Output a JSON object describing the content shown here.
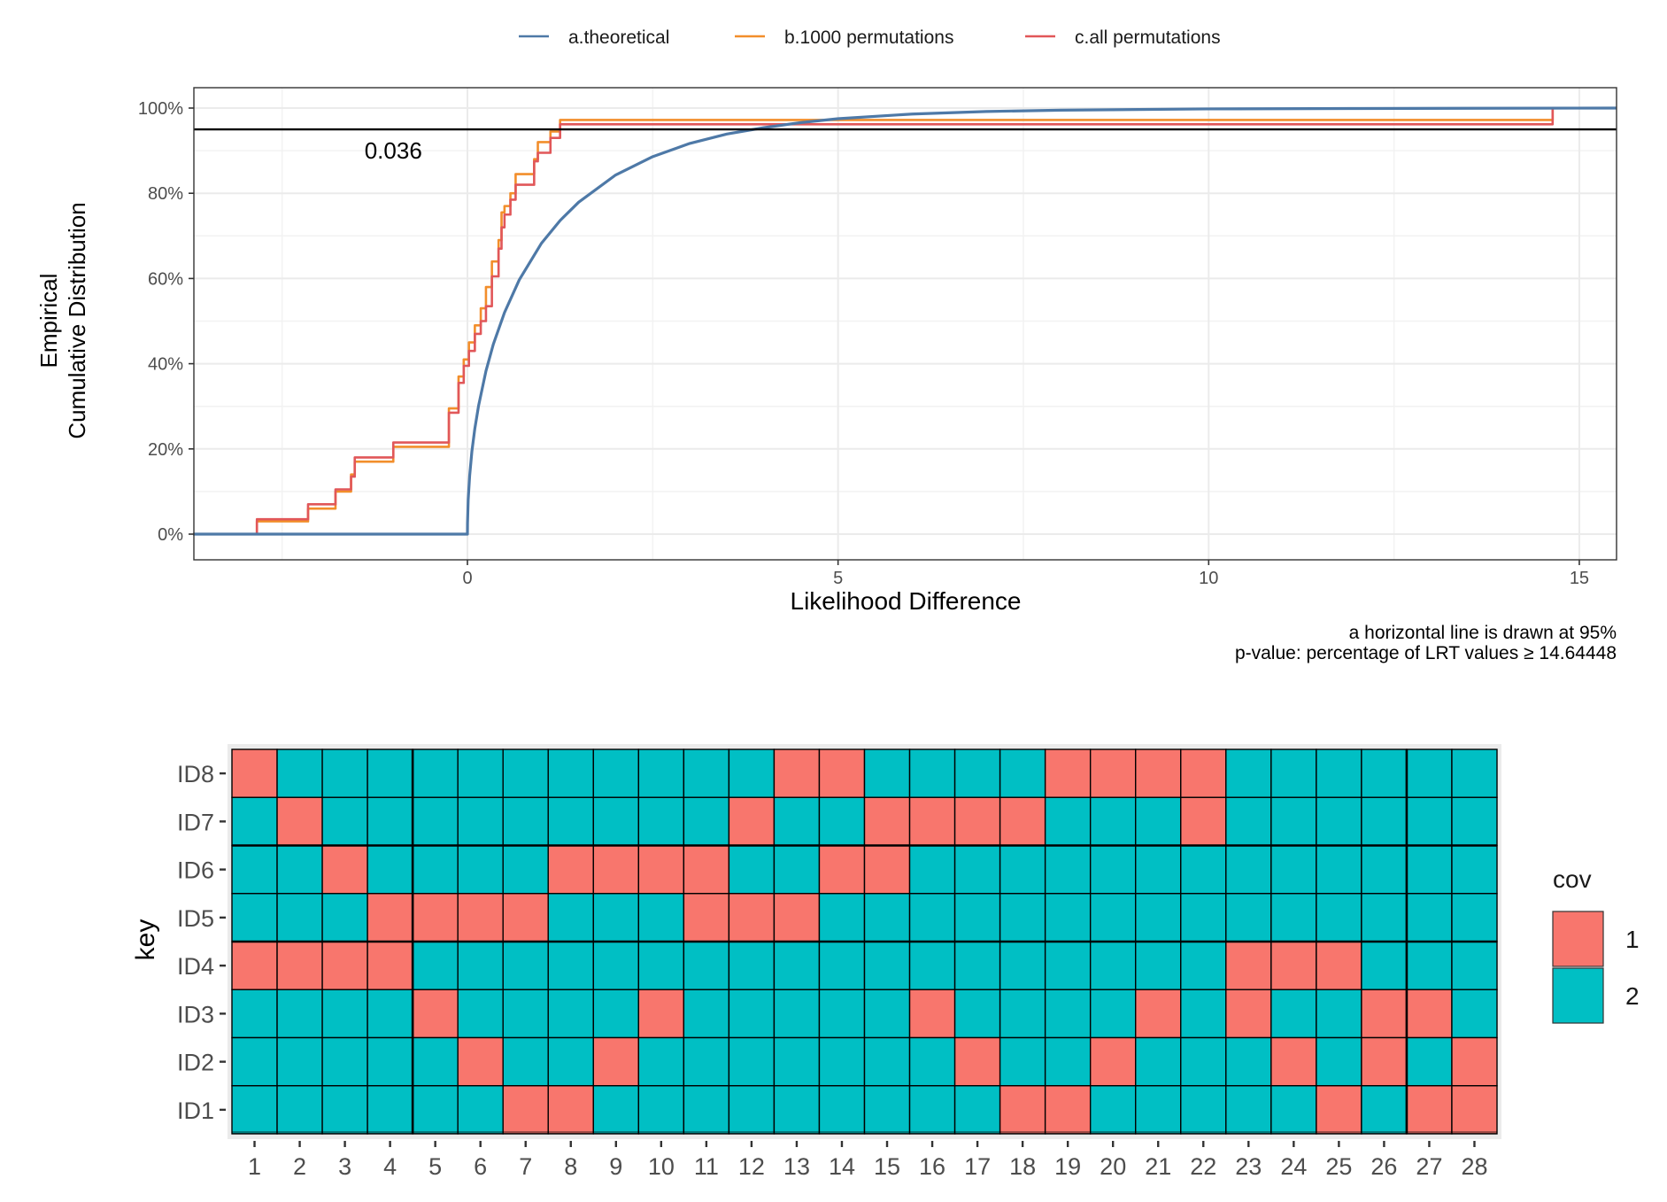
{
  "chart_data": [
    {
      "type": "line",
      "subtype": "ecdf-step",
      "title": "",
      "xlabel": "Likelihood Difference",
      "ylabel_lines": [
        "Empirical",
        "Cumulative Distribution"
      ],
      "xlim": [
        -3.7,
        15.5
      ],
      "ylim": [
        0,
        1.0
      ],
      "x_ticks": [
        0,
        5,
        10,
        15
      ],
      "x_tick_labels": [
        "0",
        "5",
        "10",
        "15"
      ],
      "y_ticks": [
        0,
        0.2,
        0.4,
        0.6,
        0.8,
        1.0
      ],
      "y_tick_labels": [
        "0%",
        "20%",
        "40%",
        "60%",
        "80%",
        "100%"
      ],
      "grid": true,
      "legend_position": "top",
      "hline": {
        "y": 0.95,
        "color": "#000000"
      },
      "annotation": {
        "text": "0.036",
        "x": -1.0,
        "y": 0.9
      },
      "caption_lines": [
        "a horizontal line is drawn at 95%",
        "p-value: percentage of LRT values ≥ 14.64448"
      ],
      "series": [
        {
          "name": "a.theoretical",
          "color": "#4e79a7",
          "kind": "curve",
          "x": [
            -3.7,
            0,
            0.001,
            0.01,
            0.03,
            0.06,
            0.1,
            0.15,
            0.25,
            0.35,
            0.5,
            0.7,
            1.0,
            1.25,
            1.5,
            2.0,
            2.5,
            3.0,
            3.5,
            4.0,
            4.5,
            5.0,
            6.0,
            7.0,
            8.0,
            10.0,
            12.0,
            15.5
          ],
          "y": [
            0,
            0,
            0.025,
            0.08,
            0.137,
            0.194,
            0.248,
            0.301,
            0.383,
            0.446,
            0.52,
            0.597,
            0.683,
            0.736,
            0.779,
            0.843,
            0.886,
            0.917,
            0.939,
            0.954,
            0.966,
            0.975,
            0.986,
            0.992,
            0.995,
            0.998,
            0.999,
            1.0
          ]
        },
        {
          "name": "b.1000 permutations",
          "color": "#f28e2b",
          "kind": "step",
          "x": [
            -3.7,
            -2.84,
            -2.15,
            -1.78,
            -1.57,
            -1.52,
            -1.0,
            -0.25,
            -0.12,
            -0.05,
            0.02,
            0.1,
            0.18,
            0.25,
            0.33,
            0.42,
            0.46,
            0.5,
            0.58,
            0.65,
            0.9,
            0.95,
            1.12,
            1.25,
            14.64,
            15.5
          ],
          "y": [
            0,
            0.03,
            0.06,
            0.1,
            0.14,
            0.17,
            0.205,
            0.295,
            0.37,
            0.41,
            0.45,
            0.49,
            0.53,
            0.58,
            0.64,
            0.69,
            0.755,
            0.77,
            0.8,
            0.845,
            0.88,
            0.92,
            0.945,
            0.972,
            1.0,
            1.0
          ]
        },
        {
          "name": "c.all permutations",
          "color": "#e15759",
          "kind": "step",
          "x": [
            -3.7,
            -2.84,
            -2.15,
            -1.78,
            -1.57,
            -1.52,
            -1.0,
            -0.25,
            -0.12,
            -0.05,
            0.02,
            0.1,
            0.18,
            0.25,
            0.33,
            0.42,
            0.46,
            0.5,
            0.58,
            0.65,
            0.9,
            0.95,
            1.12,
            1.25,
            14.64,
            15.5
          ],
          "y": [
            0,
            0.035,
            0.07,
            0.105,
            0.135,
            0.18,
            0.215,
            0.285,
            0.355,
            0.395,
            0.43,
            0.47,
            0.5,
            0.535,
            0.605,
            0.67,
            0.72,
            0.75,
            0.785,
            0.82,
            0.875,
            0.895,
            0.93,
            0.962,
            1.0,
            1.0
          ]
        }
      ]
    },
    {
      "type": "heatmap",
      "title": "",
      "xlabel": "",
      "ylabel": "key",
      "x_categories": [
        "1",
        "2",
        "3",
        "4",
        "5",
        "6",
        "7",
        "8",
        "9",
        "10",
        "11",
        "12",
        "13",
        "14",
        "15",
        "16",
        "17",
        "18",
        "19",
        "20",
        "21",
        "22",
        "23",
        "24",
        "25",
        "26",
        "27",
        "28"
      ],
      "y_categories": [
        "ID8",
        "ID7",
        "ID6",
        "ID5",
        "ID4",
        "ID3",
        "ID2",
        "ID1"
      ],
      "legend": {
        "title": "cov",
        "position": "right",
        "entries": [
          {
            "label": "1",
            "value": 1,
            "color": "#f8766d"
          },
          {
            "label": "2",
            "value": 2,
            "color": "#00bfc4"
          }
        ]
      },
      "values": [
        [
          1,
          2,
          2,
          2,
          2,
          2,
          2,
          2,
          2,
          2,
          2,
          2,
          1,
          1,
          2,
          2,
          2,
          2,
          1,
          1,
          1,
          1,
          2,
          2,
          2,
          2,
          2,
          2
        ],
        [
          2,
          1,
          2,
          2,
          2,
          2,
          2,
          2,
          2,
          2,
          2,
          1,
          2,
          2,
          1,
          1,
          1,
          1,
          2,
          2,
          2,
          1,
          2,
          2,
          2,
          2,
          2,
          2
        ],
        [
          2,
          2,
          1,
          2,
          2,
          2,
          2,
          1,
          1,
          1,
          1,
          2,
          2,
          1,
          1,
          2,
          2,
          2,
          2,
          2,
          2,
          2,
          2,
          2,
          2,
          2,
          2,
          2
        ],
        [
          2,
          2,
          2,
          1,
          1,
          1,
          1,
          2,
          2,
          2,
          1,
          1,
          1,
          2,
          2,
          2,
          2,
          2,
          2,
          2,
          2,
          2,
          2,
          2,
          2,
          2,
          2,
          2
        ],
        [
          1,
          1,
          1,
          1,
          2,
          2,
          2,
          2,
          2,
          2,
          2,
          2,
          2,
          2,
          2,
          2,
          2,
          2,
          2,
          2,
          2,
          2,
          1,
          1,
          1,
          2,
          2,
          2
        ],
        [
          2,
          2,
          2,
          2,
          1,
          2,
          2,
          2,
          2,
          1,
          2,
          2,
          2,
          2,
          2,
          1,
          2,
          2,
          2,
          2,
          1,
          2,
          1,
          2,
          2,
          1,
          1,
          2
        ],
        [
          2,
          2,
          2,
          2,
          2,
          1,
          2,
          2,
          1,
          2,
          2,
          2,
          2,
          2,
          2,
          2,
          1,
          2,
          2,
          1,
          2,
          2,
          2,
          1,
          2,
          1,
          2,
          1
        ],
        [
          2,
          2,
          2,
          2,
          2,
          2,
          1,
          1,
          2,
          2,
          2,
          2,
          2,
          2,
          2,
          2,
          2,
          1,
          1,
          2,
          2,
          2,
          2,
          2,
          1,
          2,
          1,
          1
        ]
      ]
    }
  ]
}
